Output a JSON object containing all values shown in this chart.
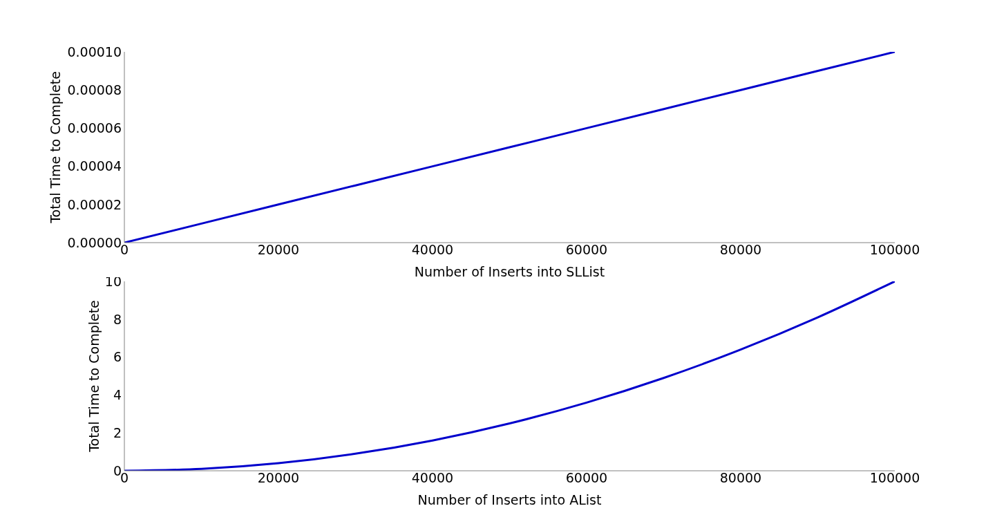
{
  "chart_data": [
    {
      "type": "line",
      "xlabel": "Number of Inserts into SLList",
      "ylabel": "Total Time to Complete",
      "x": [
        0,
        20000,
        40000,
        60000,
        80000,
        100000
      ],
      "series": [
        {
          "color": "#0000cc",
          "values": [
            0,
            2e-05,
            4e-05,
            6e-05,
            8e-05,
            0.0001
          ]
        }
      ],
      "xlim": [
        0,
        100000
      ],
      "xticks": [
        0,
        20000,
        40000,
        60000,
        80000,
        100000
      ],
      "ylim": [
        0,
        0.0001
      ],
      "yticks": [
        {
          "value": 0,
          "label": "0.00000"
        },
        {
          "value": 2e-05,
          "label": "0.00002"
        },
        {
          "value": 4e-05,
          "label": "0.00004"
        },
        {
          "value": 6e-05,
          "label": "0.00006"
        },
        {
          "value": 8e-05,
          "label": "0.00008"
        },
        {
          "value": 0.0001,
          "label": "0.00010"
        }
      ]
    },
    {
      "type": "line",
      "xlabel": "Number of Inserts into AList",
      "ylabel": "Total Time to Complete",
      "x": [
        0,
        10000,
        20000,
        30000,
        40000,
        50000,
        60000,
        70000,
        80000,
        90000,
        100000
      ],
      "series": [
        {
          "color": "#0000cc",
          "values": [
            0,
            0.1,
            0.4,
            0.9,
            1.6,
            2.5,
            3.6,
            4.9,
            6.4,
            8.1,
            10
          ]
        }
      ],
      "xlim": [
        0,
        100000
      ],
      "xticks": [
        0,
        20000,
        40000,
        60000,
        80000,
        100000
      ],
      "ylim": [
        0,
        10
      ],
      "yticks": [
        0,
        2,
        4,
        6,
        8,
        10
      ]
    }
  ]
}
